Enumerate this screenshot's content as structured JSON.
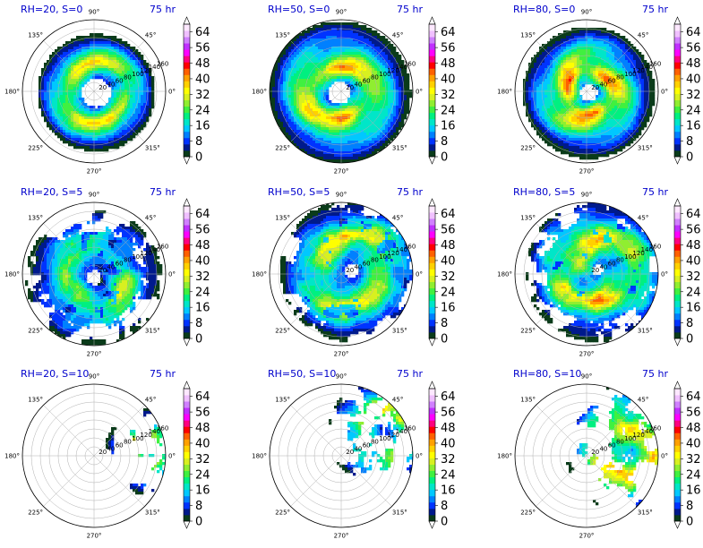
{
  "chart_data": {
    "type": "polar_filled_contour_grid",
    "rows": 3,
    "cols": 3,
    "angle_ticks": [
      "0°",
      "45°",
      "90°",
      "135°",
      "180°",
      "225°",
      "270°",
      "315°"
    ],
    "radial_ticks": [
      20,
      40,
      60,
      80,
      100,
      120,
      140,
      160
    ],
    "rlim": [
      0,
      160
    ],
    "grid": true,
    "colorbar": {
      "ticks": [
        0,
        8,
        16,
        24,
        32,
        40,
        48,
        56,
        64
      ],
      "min": 0,
      "max": 68,
      "step": 4,
      "extend": "both",
      "colors": [
        "#0a3b1a",
        "#001a8c",
        "#0033ff",
        "#0080ff",
        "#00c8ff",
        "#00e6c8",
        "#00f080",
        "#40f040",
        "#90ee30",
        "#d8f020",
        "#ffff00",
        "#ffd000",
        "#ffa000",
        "#ff6000",
        "#ff0000",
        "#ff0080",
        "#ff00ff",
        "#c030ff",
        "#d080ff",
        "#f0c0ff",
        "#fde8ff"
      ],
      "under_color": "#ffffff",
      "over_color": "#ffffff"
    },
    "panels": [
      {
        "title": "RH=20, S=0",
        "time": "75 hr",
        "field": {
          "kind": "ring",
          "cx": 0.03,
          "cy": -0.02,
          "inner": 0.2,
          "outer": 0.82,
          "peak": 0.42,
          "max": 52,
          "arms": 2,
          "noise": 0.35
        }
      },
      {
        "title": "RH=50, S=0",
        "time": "75 hr",
        "field": {
          "kind": "ring",
          "cx": -0.03,
          "cy": -0.02,
          "inner": 0.16,
          "outer": 1.0,
          "peak": 0.36,
          "max": 56,
          "arms": 2,
          "noise": 0.3
        }
      },
      {
        "title": "RH=80, S=0",
        "time": "75 hr",
        "field": {
          "kind": "ring",
          "cx": 0.03,
          "cy": -0.02,
          "inner": 0.12,
          "outer": 0.92,
          "peak": 0.3,
          "max": 60,
          "arms": 3,
          "noise": 0.25
        }
      },
      {
        "title": "RH=20, S=5",
        "time": "75 hr",
        "field": {
          "kind": "patchy",
          "cx": 0.0,
          "cy": -0.05,
          "inner": 0.1,
          "outer": 0.95,
          "peak": 0.4,
          "max": 48,
          "arms": 2,
          "noise": 0.7
        }
      },
      {
        "title": "RH=50, S=5",
        "time": "75 hr",
        "field": {
          "kind": "patchy",
          "cx": 0.15,
          "cy": 0.05,
          "inner": 0.1,
          "outer": 1.0,
          "peak": 0.5,
          "max": 52,
          "arms": 2,
          "noise": 0.6
        }
      },
      {
        "title": "RH=80, S=5",
        "time": "75 hr",
        "field": {
          "kind": "patchy",
          "cx": 0.15,
          "cy": 0.05,
          "inner": 0.08,
          "outer": 1.0,
          "peak": 0.45,
          "max": 56,
          "arms": 2,
          "noise": 0.55
        }
      },
      {
        "title": "RH=20, S=10",
        "time": "75 hr",
        "field": {
          "kind": "east",
          "cx": 0.75,
          "cy": 0.05,
          "inner": 0.0,
          "outer": 0.6,
          "peak": 0.25,
          "max": 52,
          "arms": 1,
          "noise": 0.75
        }
      },
      {
        "title": "RH=50, S=10",
        "time": "75 hr",
        "field": {
          "kind": "east",
          "cx": 0.55,
          "cy": 0.35,
          "inner": 0.0,
          "outer": 0.75,
          "peak": 0.3,
          "max": 58,
          "arms": 1,
          "noise": 0.7
        }
      },
      {
        "title": "RH=80, S=10",
        "time": "75 hr",
        "field": {
          "kind": "east",
          "cx": 0.6,
          "cy": 0.1,
          "inner": 0.0,
          "outer": 0.9,
          "peak": 0.35,
          "max": 64,
          "arms": 1,
          "noise": 0.5
        }
      }
    ]
  }
}
